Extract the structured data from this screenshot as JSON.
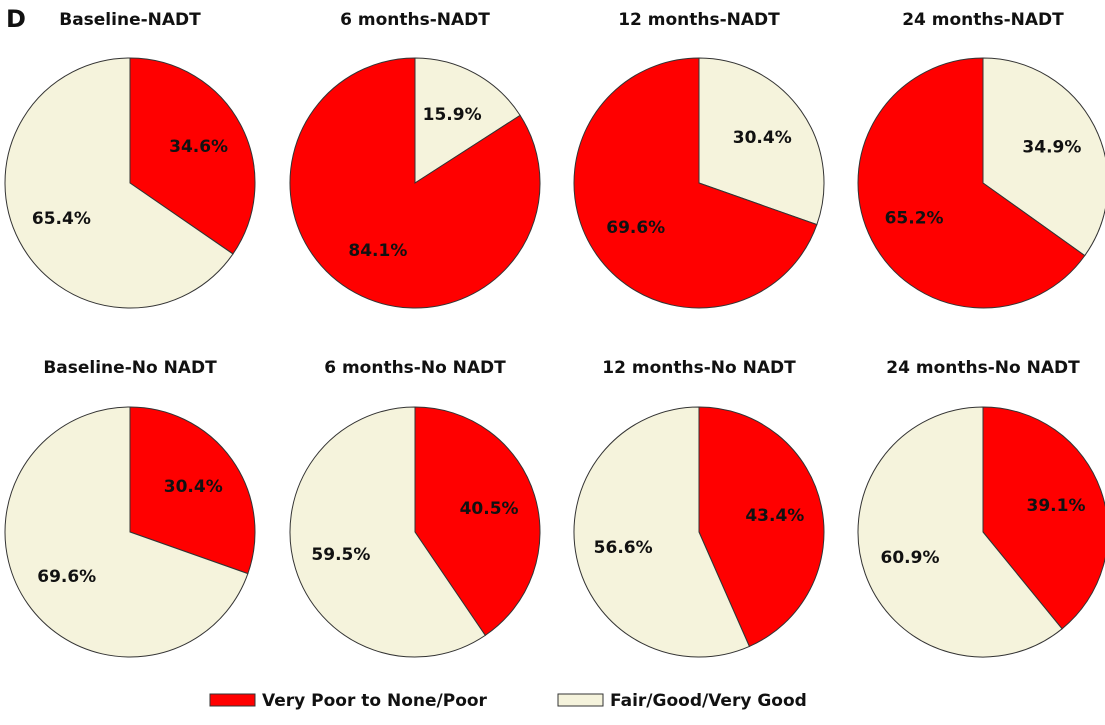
{
  "panel_label": "D",
  "legend": [
    {
      "name": "Very Poor to None/Poor",
      "color": "#ff0000"
    },
    {
      "name": "Fair/Good/Very Good",
      "color": "#f5f3dc"
    }
  ],
  "chart_data": [
    {
      "type": "pie",
      "title": "Baseline-NADT",
      "values": [
        34.6,
        65.4
      ],
      "value_labels": [
        "34.6%",
        "65.4%"
      ],
      "colors": [
        "#ff0000",
        "#f5f3dc"
      ]
    },
    {
      "type": "pie",
      "title": "6 months-NADT",
      "values": [
        15.9,
        84.1
      ],
      "value_labels": [
        "15.9%",
        "84.1%"
      ],
      "colors": [
        "#f5f3dc",
        "#ff0000"
      ]
    },
    {
      "type": "pie",
      "title": "12 months-NADT",
      "values": [
        30.4,
        69.6
      ],
      "value_labels": [
        "30.4%",
        "69.6%"
      ],
      "colors": [
        "#f5f3dc",
        "#ff0000"
      ]
    },
    {
      "type": "pie",
      "title": "24 months-NADT",
      "values": [
        34.9,
        65.2
      ],
      "value_labels": [
        "34.9%",
        "65.2%"
      ],
      "colors": [
        "#f5f3dc",
        "#ff0000"
      ]
    },
    {
      "type": "pie",
      "title": "Baseline-No NADT",
      "values": [
        30.4,
        69.6
      ],
      "value_labels": [
        "30.4%",
        "69.6%"
      ],
      "colors": [
        "#ff0000",
        "#f5f3dc"
      ]
    },
    {
      "type": "pie",
      "title": "6 months-No NADT",
      "values": [
        40.5,
        59.5
      ],
      "value_labels": [
        "40.5%",
        "59.5%"
      ],
      "colors": [
        "#ff0000",
        "#f5f3dc"
      ]
    },
    {
      "type": "pie",
      "title": "12 months-No NADT",
      "values": [
        43.4,
        56.6
      ],
      "value_labels": [
        "43.4%",
        "56.6%"
      ],
      "colors": [
        "#ff0000",
        "#f5f3dc"
      ]
    },
    {
      "type": "pie",
      "title": "24 months-No NADT",
      "values": [
        39.1,
        60.9
      ],
      "value_labels": [
        "39.1%",
        "60.9%"
      ],
      "colors": [
        "#ff0000",
        "#f5f3dc"
      ]
    }
  ]
}
